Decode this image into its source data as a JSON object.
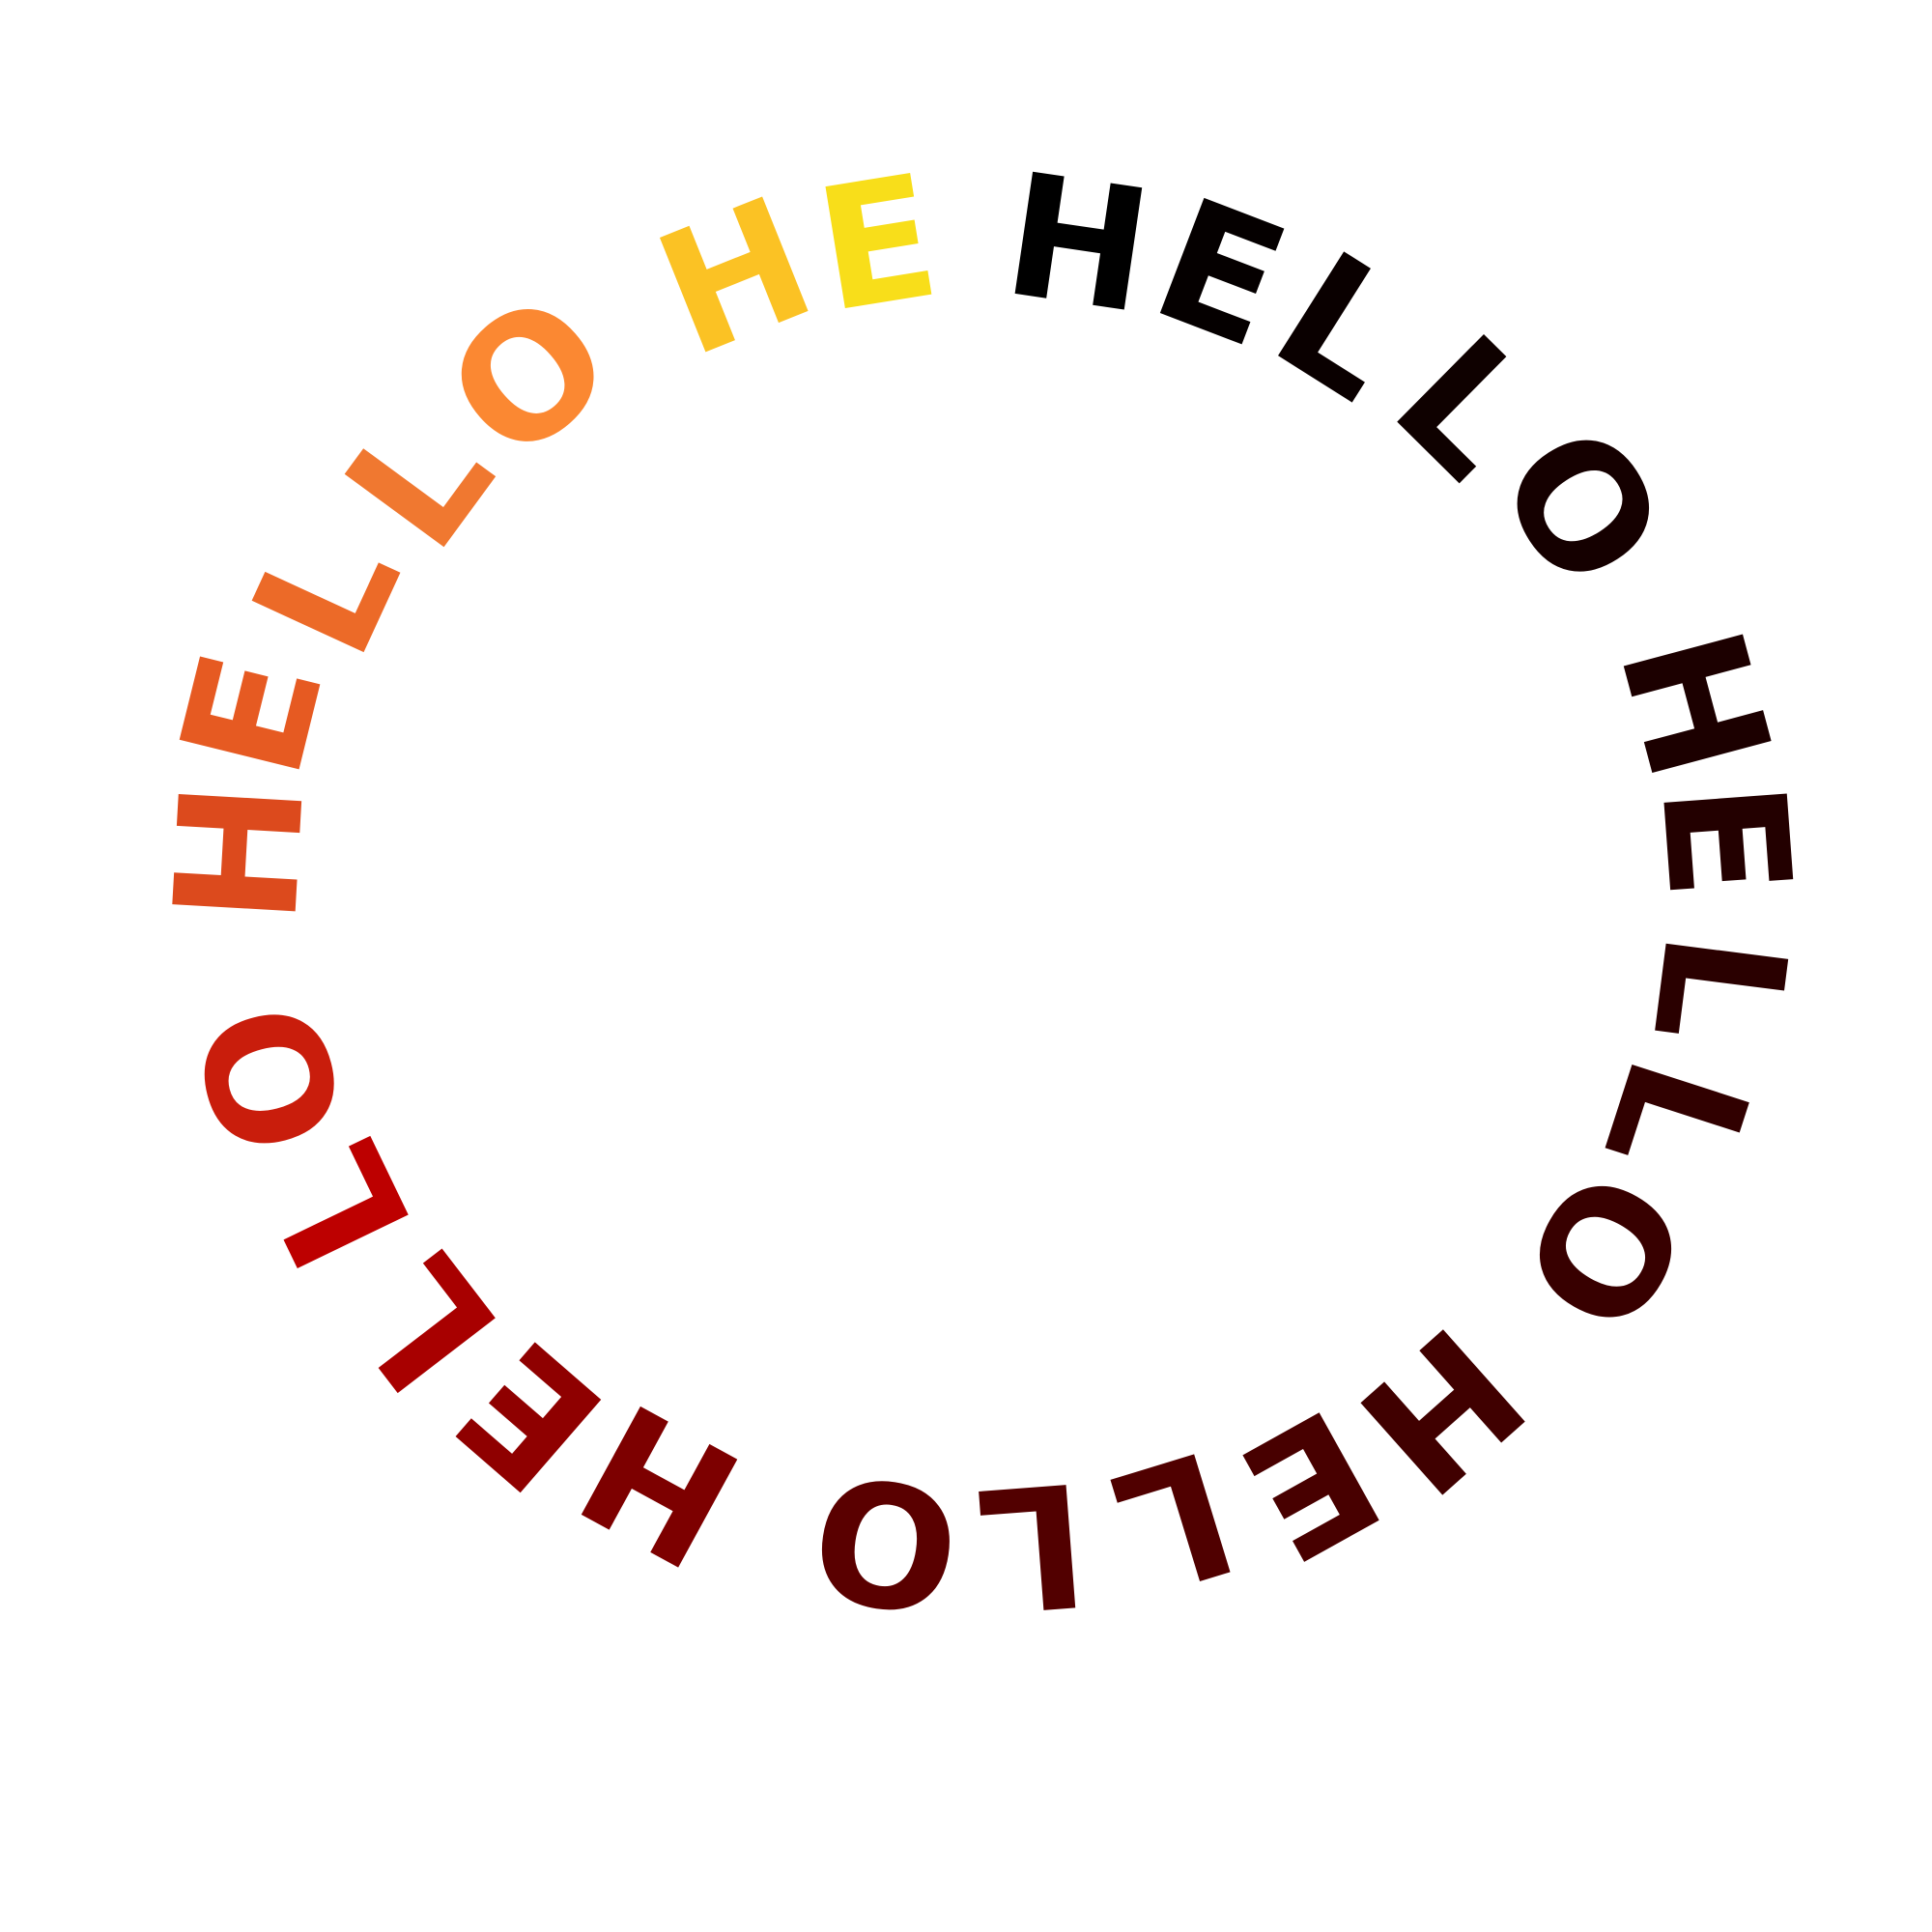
{
  "letters": [
    {
      "char": "H",
      "color": "#000000"
    },
    {
      "char": "E",
      "color": "#050000"
    },
    {
      "char": "L",
      "color": "#0a0000"
    },
    {
      "char": "L",
      "color": "#0f0100"
    },
    {
      "char": "O",
      "color": "#150000"
    },
    {
      "char": "H",
      "color": "#1c0000"
    },
    {
      "char": "E",
      "color": "#230000"
    },
    {
      "char": "L",
      "color": "#2a0000"
    },
    {
      "char": "L",
      "color": "#310000"
    },
    {
      "char": "O",
      "color": "#380000"
    },
    {
      "char": "H",
      "color": "#400000"
    },
    {
      "char": "E",
      "color": "#480000"
    },
    {
      "char": "L",
      "color": "#500000"
    },
    {
      "char": "L",
      "color": "#520000"
    },
    {
      "char": "O",
      "color": "#5a0000"
    },
    {
      "char": "H",
      "color": "#7d0000"
    },
    {
      "char": "E",
      "color": "#8f0000"
    },
    {
      "char": "L",
      "color": "#a80000"
    },
    {
      "char": "L",
      "color": "#bd0000"
    },
    {
      "char": "O",
      "color": "#c91d0c"
    },
    {
      "char": "H",
      "color": "#dc4a1d"
    },
    {
      "char": "E",
      "color": "#e65a22"
    },
    {
      "char": "L",
      "color": "#ec6a28"
    },
    {
      "char": "L",
      "color": "#f07830"
    },
    {
      "char": "O",
      "color": "#fb8832"
    },
    {
      "char": "H",
      "color": "#fbc224"
    },
    {
      "char": "E",
      "color": "#f8de1a"
    }
  ]
}
